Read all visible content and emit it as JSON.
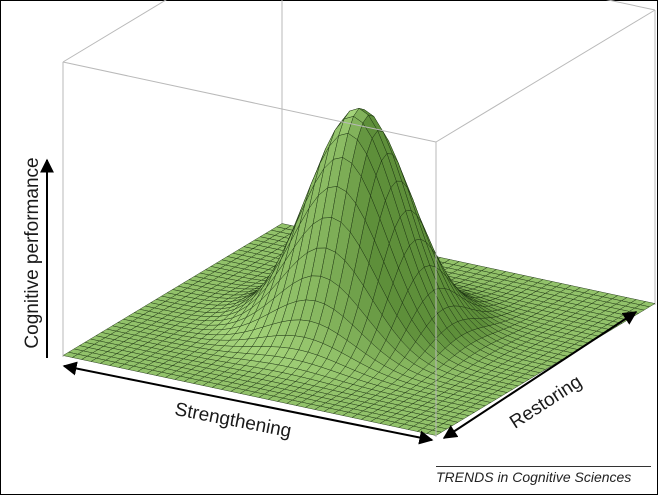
{
  "chart_data": {
    "type": "surface",
    "title": "",
    "xlabel": "Strengthening",
    "ylabel": "Restoring",
    "zlabel": "Cognitive performance",
    "surface": {
      "shape": "gaussian peak",
      "peak_position": "centre of the plane",
      "color": "#86b95a"
    },
    "grid_lines_per_axis": 40,
    "box": true,
    "ticks": false
  },
  "source": "TRENDS in Cognitive Sciences",
  "colors": {
    "surface_light": "#a4d37a",
    "surface_dark": "#5e8f3a",
    "mesh": "#1c3212",
    "box": "#b9b9b9"
  }
}
